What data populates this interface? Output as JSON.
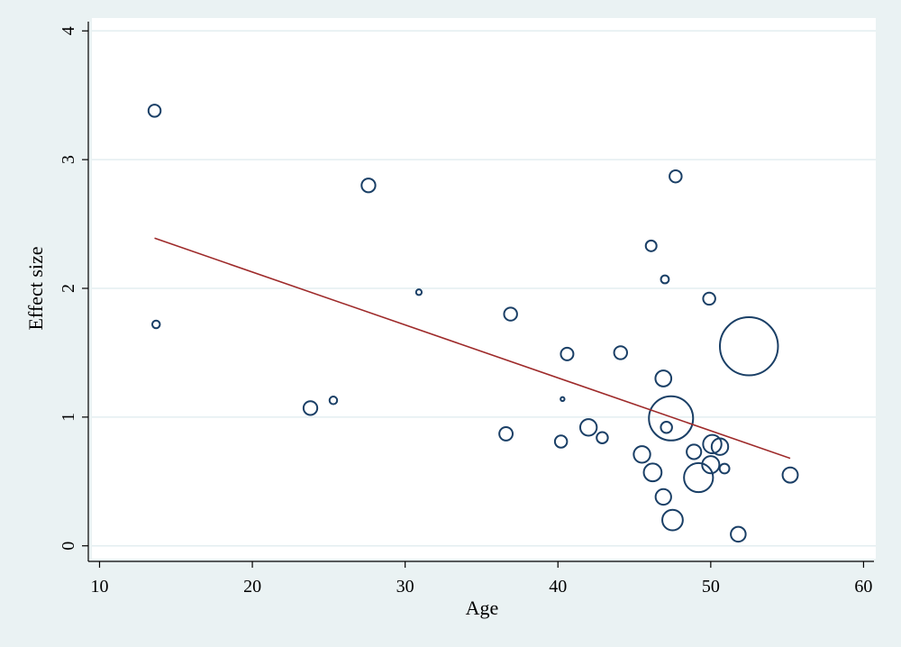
{
  "chart_data": {
    "type": "scatter",
    "title": "",
    "xlabel": "Age",
    "ylabel": "Effect size",
    "xlim": [
      9.5,
      60.8
    ],
    "ylim": [
      -0.1,
      4.1
    ],
    "xticks": [
      "10",
      "20",
      "30",
      "40",
      "50",
      "60"
    ],
    "yticks": [
      "0",
      "1",
      "2",
      "3",
      "4"
    ],
    "grid": "horizontal",
    "legend": "none",
    "colors": {
      "background": "#eaf2f3",
      "plot_area": "#ffffff",
      "grid": "#e3eef0",
      "marker": "#1a3f66",
      "fit_line": "#9e2a2a"
    },
    "marker_size_note": "bubble area proportional to study weight",
    "series": [
      {
        "type": "bubble",
        "points": [
          {
            "x": 13.6,
            "y": 3.38,
            "w": 1.4
          },
          {
            "x": 13.7,
            "y": 1.72,
            "w": 0.55
          },
          {
            "x": 23.8,
            "y": 1.07,
            "w": 1.8
          },
          {
            "x": 25.3,
            "y": 1.13,
            "w": 0.55
          },
          {
            "x": 27.6,
            "y": 2.8,
            "w": 1.8
          },
          {
            "x": 30.9,
            "y": 1.97,
            "w": 0.3
          },
          {
            "x": 36.6,
            "y": 0.87,
            "w": 1.7
          },
          {
            "x": 36.9,
            "y": 1.8,
            "w": 1.6
          },
          {
            "x": 40.2,
            "y": 0.81,
            "w": 1.4
          },
          {
            "x": 40.3,
            "y": 1.14,
            "w": 0.1
          },
          {
            "x": 40.6,
            "y": 1.49,
            "w": 1.5
          },
          {
            "x": 42.0,
            "y": 0.92,
            "w": 2.6
          },
          {
            "x": 42.9,
            "y": 0.84,
            "w": 1.2
          },
          {
            "x": 44.1,
            "y": 1.5,
            "w": 1.6
          },
          {
            "x": 45.5,
            "y": 0.71,
            "w": 2.6
          },
          {
            "x": 46.1,
            "y": 2.33,
            "w": 1.1
          },
          {
            "x": 46.2,
            "y": 0.57,
            "w": 3.0
          },
          {
            "x": 46.9,
            "y": 1.3,
            "w": 2.4
          },
          {
            "x": 46.9,
            "y": 0.38,
            "w": 2.3
          },
          {
            "x": 47.0,
            "y": 2.07,
            "w": 0.6
          },
          {
            "x": 47.1,
            "y": 0.92,
            "w": 1.2
          },
          {
            "x": 47.4,
            "y": 0.99,
            "w": 18.5
          },
          {
            "x": 47.5,
            "y": 0.2,
            "w": 4.0
          },
          {
            "x": 47.7,
            "y": 2.87,
            "w": 1.4
          },
          {
            "x": 48.9,
            "y": 0.73,
            "w": 2.0
          },
          {
            "x": 49.2,
            "y": 0.53,
            "w": 8.0
          },
          {
            "x": 49.9,
            "y": 1.92,
            "w": 1.4
          },
          {
            "x": 50.0,
            "y": 0.63,
            "w": 2.8
          },
          {
            "x": 50.1,
            "y": 0.79,
            "w": 3.2
          },
          {
            "x": 50.6,
            "y": 0.77,
            "w": 2.6
          },
          {
            "x": 50.9,
            "y": 0.6,
            "w": 0.9
          },
          {
            "x": 51.8,
            "y": 0.09,
            "w": 2.1
          },
          {
            "x": 52.5,
            "y": 1.55,
            "w": 32.0
          },
          {
            "x": 55.2,
            "y": 0.55,
            "w": 2.2
          }
        ]
      },
      {
        "type": "line",
        "x": [
          13.6,
          55.2
        ],
        "y": [
          2.39,
          0.68
        ]
      }
    ]
  }
}
